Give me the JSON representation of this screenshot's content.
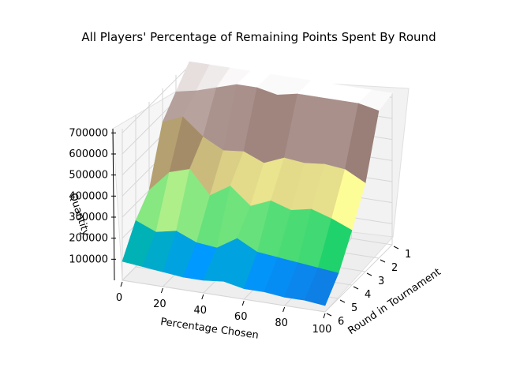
{
  "chart_data": {
    "type": "surface",
    "title": "All Players' Percentage of Remaining Points Spent By Round",
    "xlabel": "Percentage Chosen",
    "ylabel": "Round in Tournament",
    "zlabel": "Quantity",
    "x_ticks": [
      0,
      20,
      40,
      60,
      80,
      100
    ],
    "y_ticks": [
      1,
      2,
      3,
      4,
      5,
      6
    ],
    "z_ticks": [
      100000,
      200000,
      300000,
      400000,
      500000,
      600000,
      700000
    ],
    "xlim": [
      0,
      100
    ],
    "ylim": [
      1,
      6
    ],
    "zlim": [
      0,
      720000
    ],
    "grid": true,
    "colormap": "terrain",
    "surface_levels": [
      {
        "round": 1,
        "values": [
          720000,
          720000,
          720000,
          720000,
          720000,
          720000,
          720000,
          720000,
          720000,
          720000,
          720000
        ]
      },
      {
        "round": 2,
        "values": [
          640000,
          660000,
          690000,
          720000,
          720000,
          700000,
          720000,
          720000,
          720000,
          720000,
          700000
        ]
      },
      {
        "round": 3,
        "values": [
          560000,
          600000,
          520000,
          470000,
          480000,
          440000,
          480000,
          470000,
          480000,
          470000,
          420000
        ]
      },
      {
        "round": 4,
        "values": [
          300000,
          400000,
          430000,
          320000,
          380000,
          300000,
          340000,
          310000,
          330000,
          300000,
          260000
        ]
      },
      {
        "round": 5,
        "values": [
          220000,
          180000,
          200000,
          160000,
          150000,
          210000,
          160000,
          150000,
          140000,
          130000,
          120000
        ]
      },
      {
        "round": 6,
        "values": [
          90000,
          80000,
          70000,
          60000,
          60000,
          70000,
          50000,
          50000,
          40000,
          40000,
          30000
        ]
      }
    ]
  }
}
